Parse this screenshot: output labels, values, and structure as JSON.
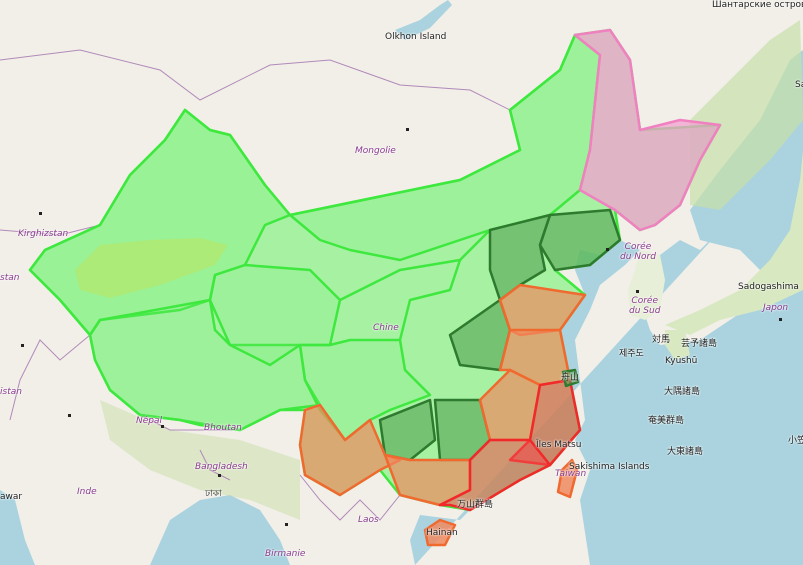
{
  "map": {
    "colors": {
      "land": "#f2efe9",
      "sea": "#aad3df",
      "green": "#7cf27c",
      "dark_green": "#4c9a4c",
      "orange": "#f08a60",
      "red": "#f24a4a",
      "pink": "#f2a0d0",
      "forest": "#c8dfa8"
    },
    "labels": {
      "olkhon": "Olkhon Island",
      "shantar": "Шантарские острова",
      "mongolie": "Mongolie",
      "kirghizstan": "Kirghizstan",
      "stan1": "stan",
      "stan2": "istan",
      "chine": "Chine",
      "coree_nord": "Corée\ndu Nord",
      "coree_sud": "Corée\ndu Sud",
      "sadogashima": "Sadogashima",
      "japon": "Japon",
      "tsushima": "対馬",
      "iki": "芸予諸島",
      "jeju": "제주도",
      "kyushu": "Kyūshū",
      "osumi": "大隅諸島",
      "amami": "奄美群島",
      "daito": "大東諸島",
      "ogasawara": "小笠",
      "matsu": "Îles Matsu",
      "sakishima": "Sakishima Islands",
      "taiwan": "Taiwan",
      "zhoushan": "舟山",
      "wanshan": "万山群島",
      "hainan": "Hainan",
      "nepal": "Népal",
      "bhoutan": "Bhoutan",
      "bangladesh": "Bangladesh",
      "inde": "Inde",
      "awar": "awar",
      "dhaka": "ঢাকা",
      "laos": "Laos",
      "birmanie": "Birmanie",
      "sa": "Sa"
    }
  }
}
